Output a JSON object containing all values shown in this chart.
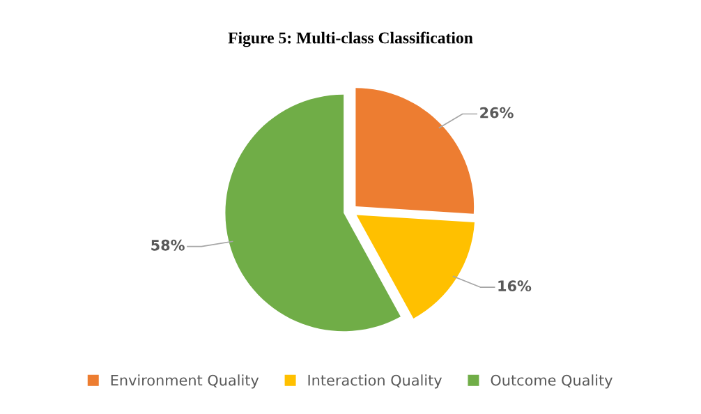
{
  "chart_data": {
    "type": "pie",
    "title": "Figure 5: Multi-class Classification",
    "categories": [
      "Environment Quality",
      "Interaction Quality",
      "Outcome Quality"
    ],
    "values": [
      26,
      16,
      58
    ],
    "colors": [
      "#ed7d31",
      "#ffc000",
      "#70ad47"
    ],
    "value_labels": [
      "26%",
      "16%",
      "58%"
    ],
    "legend": "bottom"
  }
}
